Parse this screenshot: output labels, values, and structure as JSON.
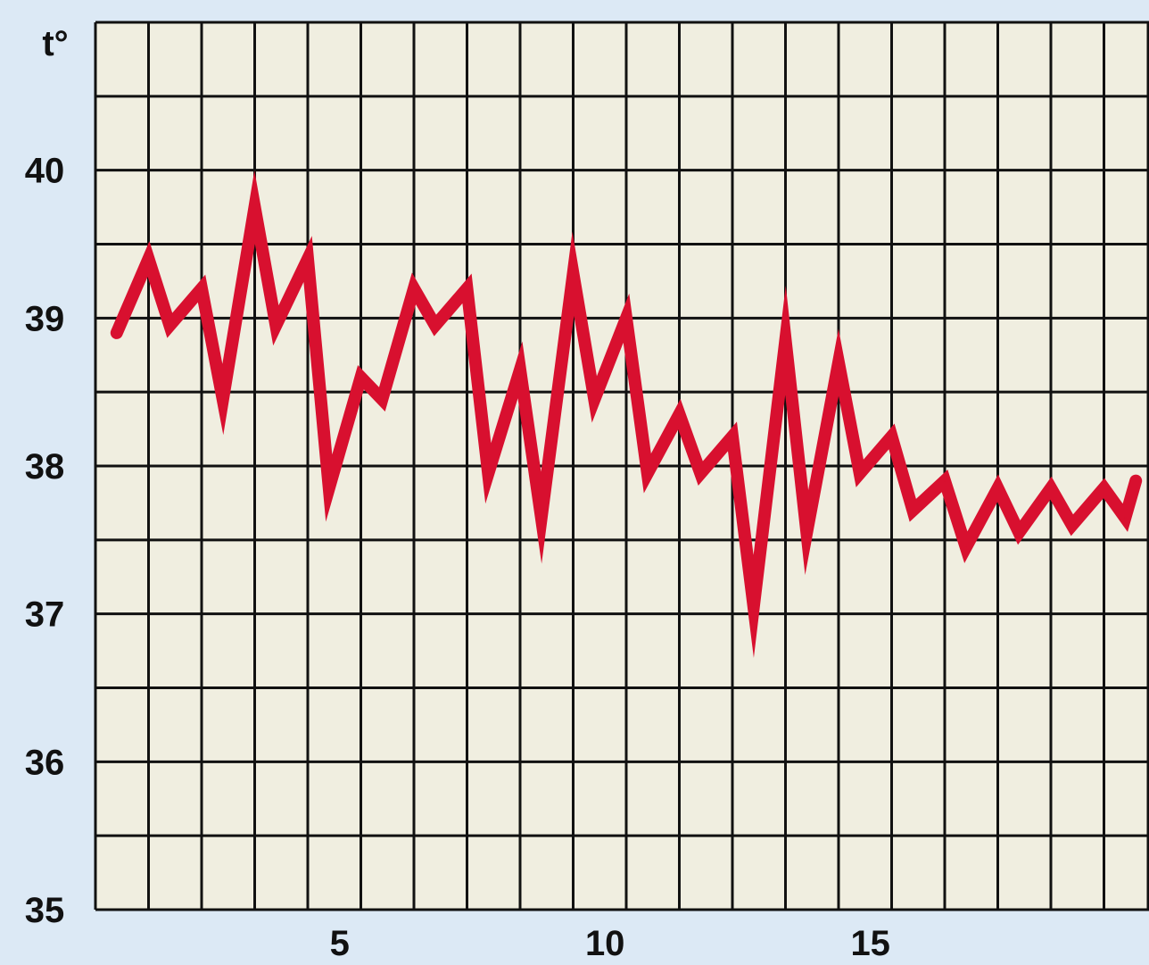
{
  "chart_data": {
    "type": "line",
    "title": "",
    "xlabel": "",
    "ylabel": "t°",
    "grid": true,
    "xlim": [
      0.2,
      19.6
    ],
    "ylim": [
      35,
      41
    ],
    "x_ticks": [
      5,
      10,
      15
    ],
    "y_ticks": [
      35,
      36,
      37,
      38,
      39,
      40
    ],
    "series": [
      {
        "x": [
          0.4,
          1.0,
          1.4,
          2.0,
          2.4,
          3.0,
          3.4,
          4.0,
          4.4,
          5.0,
          5.4,
          6.0,
          6.4,
          7.0,
          7.4,
          8.0,
          8.4,
          9.0,
          9.4,
          10.0,
          10.4,
          11.0,
          11.4,
          12.0,
          12.4,
          13.0,
          13.4,
          14.0,
          14.4,
          15.0,
          15.4,
          16.0,
          16.4,
          17.0,
          17.4,
          18.0,
          18.4,
          19.0,
          19.4,
          19.6
        ],
        "y": [
          38.9,
          39.4,
          38.95,
          39.2,
          38.45,
          39.75,
          38.95,
          39.4,
          37.85,
          38.6,
          38.45,
          39.2,
          38.95,
          39.2,
          37.95,
          38.65,
          37.65,
          39.3,
          38.45,
          39.0,
          37.95,
          38.35,
          37.95,
          38.2,
          37.05,
          38.85,
          37.55,
          38.7,
          37.95,
          38.2,
          37.7,
          37.9,
          37.45,
          37.85,
          37.55,
          37.85,
          37.6,
          37.85,
          37.65,
          37.9
        ],
        "color": "#d8102f"
      }
    ],
    "colors": {
      "plot_background": "#f0eee0",
      "page_background": "#dce9f5",
      "grid_line": "#111111",
      "tick_label": "#111111"
    }
  }
}
